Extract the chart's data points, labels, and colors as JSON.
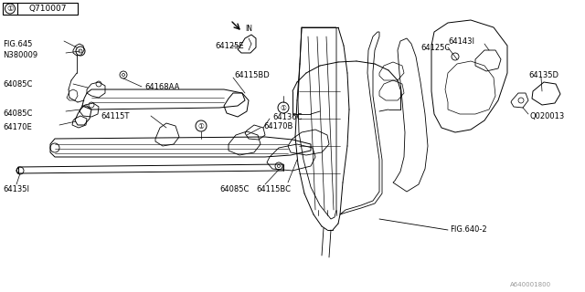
{
  "bg_color": "#ffffff",
  "line_color": "#000000",
  "ref_box_label": "Q710007",
  "bottom_ref": "A640001800",
  "fig640_2": "FIG.640-2",
  "font_size": 6.0,
  "small_font": 5.0
}
